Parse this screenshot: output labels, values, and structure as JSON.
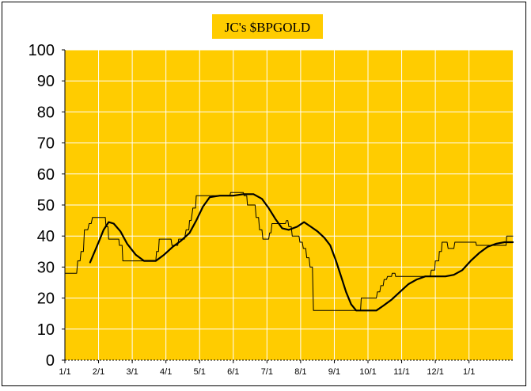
{
  "chart_data": {
    "type": "line",
    "title": "JC's $BPGOLD",
    "xlabel": "",
    "ylabel": "",
    "ylim": [
      0,
      100
    ],
    "y_ticks": [
      0,
      10,
      20,
      30,
      40,
      50,
      60,
      70,
      80,
      90,
      100
    ],
    "x_ticks": [
      "1/1",
      "2/1",
      "3/1",
      "4/1",
      "5/1",
      "6/1",
      "7/1",
      "8/1",
      "9/1",
      "10/1",
      "11/1",
      "12/1",
      "1/1"
    ],
    "x_range_months": [
      0,
      13.3
    ],
    "grid": true,
    "legend": "none",
    "colors": {
      "plot_background": "#FFCC00",
      "title_background": "#FFCC00",
      "grid": "#FFFFFF",
      "raw_line": "#000000",
      "smooth_line": "#000000"
    },
    "series": [
      {
        "style": "thin-step",
        "points": [
          [
            0.0,
            28
          ],
          [
            0.35,
            28
          ],
          [
            0.38,
            32
          ],
          [
            0.45,
            32
          ],
          [
            0.48,
            35
          ],
          [
            0.55,
            35
          ],
          [
            0.58,
            42
          ],
          [
            0.68,
            42
          ],
          [
            0.72,
            44
          ],
          [
            0.78,
            44
          ],
          [
            0.82,
            46
          ],
          [
            1.2,
            46
          ],
          [
            1.22,
            43
          ],
          [
            1.28,
            43
          ],
          [
            1.3,
            39
          ],
          [
            1.6,
            39
          ],
          [
            1.62,
            37
          ],
          [
            1.7,
            37
          ],
          [
            1.72,
            32
          ],
          [
            2.7,
            32
          ],
          [
            2.72,
            35
          ],
          [
            2.78,
            35
          ],
          [
            2.8,
            39
          ],
          [
            3.15,
            39
          ],
          [
            3.18,
            37
          ],
          [
            3.35,
            37
          ],
          [
            3.38,
            39
          ],
          [
            3.55,
            39
          ],
          [
            3.6,
            42
          ],
          [
            3.68,
            42
          ],
          [
            3.7,
            45
          ],
          [
            3.75,
            45
          ],
          [
            3.8,
            49
          ],
          [
            3.88,
            49
          ],
          [
            3.9,
            53
          ],
          [
            4.9,
            53
          ],
          [
            4.92,
            54
          ],
          [
            5.3,
            54
          ],
          [
            5.32,
            53
          ],
          [
            5.4,
            53
          ],
          [
            5.42,
            50
          ],
          [
            5.65,
            50
          ],
          [
            5.68,
            46
          ],
          [
            5.75,
            46
          ],
          [
            5.78,
            42
          ],
          [
            5.85,
            42
          ],
          [
            5.88,
            39
          ],
          [
            6.05,
            39
          ],
          [
            6.08,
            41
          ],
          [
            6.12,
            41
          ],
          [
            6.15,
            44
          ],
          [
            6.55,
            44
          ],
          [
            6.58,
            45
          ],
          [
            6.62,
            45
          ],
          [
            6.65,
            43
          ],
          [
            6.72,
            43
          ],
          [
            6.75,
            40
          ],
          [
            6.95,
            40
          ],
          [
            6.98,
            38
          ],
          [
            7.05,
            38
          ],
          [
            7.08,
            36
          ],
          [
            7.15,
            36
          ],
          [
            7.18,
            33
          ],
          [
            7.25,
            33
          ],
          [
            7.28,
            30
          ],
          [
            7.35,
            30
          ],
          [
            7.38,
            16
          ],
          [
            8.78,
            16
          ],
          [
            8.8,
            20
          ],
          [
            9.25,
            20
          ],
          [
            9.28,
            22
          ],
          [
            9.35,
            22
          ],
          [
            9.38,
            24
          ],
          [
            9.45,
            24
          ],
          [
            9.48,
            26
          ],
          [
            9.55,
            26
          ],
          [
            9.58,
            27
          ],
          [
            9.7,
            27
          ],
          [
            9.72,
            28
          ],
          [
            9.8,
            28
          ],
          [
            9.82,
            27
          ],
          [
            10.85,
            27
          ],
          [
            10.88,
            29
          ],
          [
            10.98,
            29
          ],
          [
            11.0,
            32
          ],
          [
            11.1,
            32
          ],
          [
            11.12,
            35
          ],
          [
            11.18,
            35
          ],
          [
            11.2,
            38
          ],
          [
            11.35,
            38
          ],
          [
            11.38,
            36
          ],
          [
            11.55,
            36
          ],
          [
            11.58,
            38
          ],
          [
            12.2,
            38
          ],
          [
            12.22,
            37
          ],
          [
            13.1,
            37
          ],
          [
            13.12,
            40
          ],
          [
            13.3,
            40
          ]
        ]
      },
      {
        "style": "thick-smooth",
        "points": [
          [
            0.75,
            31.5
          ],
          [
            1.0,
            38
          ],
          [
            1.15,
            42
          ],
          [
            1.3,
            44.5
          ],
          [
            1.45,
            44
          ],
          [
            1.65,
            41.5
          ],
          [
            1.85,
            37.5
          ],
          [
            2.1,
            34
          ],
          [
            2.35,
            32
          ],
          [
            2.7,
            32
          ],
          [
            2.95,
            34
          ],
          [
            3.2,
            36.5
          ],
          [
            3.45,
            38.5
          ],
          [
            3.7,
            41
          ],
          [
            3.9,
            45
          ],
          [
            4.1,
            49.5
          ],
          [
            4.3,
            52.5
          ],
          [
            4.6,
            53
          ],
          [
            5.0,
            53
          ],
          [
            5.3,
            53.5
          ],
          [
            5.6,
            53.5
          ],
          [
            5.85,
            52
          ],
          [
            6.05,
            49
          ],
          [
            6.25,
            45.5
          ],
          [
            6.45,
            42.5
          ],
          [
            6.65,
            42
          ],
          [
            6.9,
            43
          ],
          [
            7.1,
            44.5
          ],
          [
            7.3,
            43
          ],
          [
            7.5,
            41.5
          ],
          [
            7.7,
            39.5
          ],
          [
            7.88,
            37
          ],
          [
            8.05,
            32
          ],
          [
            8.2,
            27
          ],
          [
            8.35,
            22
          ],
          [
            8.5,
            18
          ],
          [
            8.65,
            16
          ],
          [
            9.0,
            16
          ],
          [
            9.25,
            16
          ],
          [
            9.45,
            17.5
          ],
          [
            9.7,
            19.5
          ],
          [
            9.95,
            22
          ],
          [
            10.2,
            24.5
          ],
          [
            10.45,
            26
          ],
          [
            10.7,
            27
          ],
          [
            11.0,
            27
          ],
          [
            11.3,
            27
          ],
          [
            11.55,
            27.5
          ],
          [
            11.8,
            29
          ],
          [
            12.05,
            32
          ],
          [
            12.3,
            34.5
          ],
          [
            12.55,
            36.5
          ],
          [
            12.8,
            37.5
          ],
          [
            13.05,
            38
          ],
          [
            13.3,
            38
          ]
        ]
      }
    ]
  }
}
